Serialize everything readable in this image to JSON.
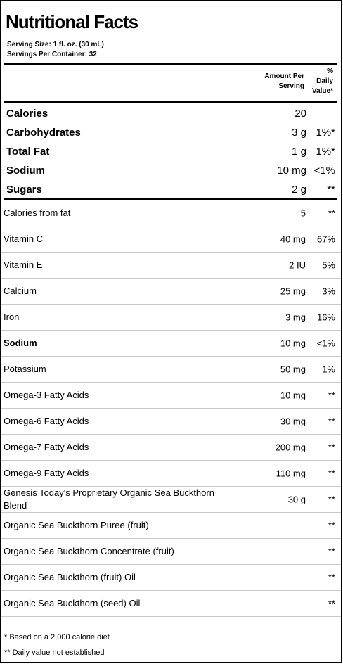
{
  "title": "Nutritional Facts",
  "serving_size": "Serving Size:  1 fl. oz. (30 mL)",
  "servings_per_container": "Servings Per Container:  32",
  "header": {
    "amount_line1": "Amount Per",
    "amount_line2": "Serving",
    "dv_line1": "%",
    "dv_line2": "Daily",
    "dv_line3": "Value*"
  },
  "top_rows": [
    {
      "name": "Calories",
      "amount": "20",
      "dv": ""
    },
    {
      "name": "Carbohydrates",
      "amount": "3 g",
      "dv": "1%*"
    },
    {
      "name": "Total Fat",
      "amount": "1 g",
      "dv": "1%*"
    },
    {
      "name": "Sodium",
      "amount": "10 mg",
      "dv": "<1%"
    },
    {
      "name": "Sugars",
      "amount": "2 g",
      "dv": "**"
    }
  ],
  "rows": [
    {
      "name": "Calories from fat",
      "amount": "5",
      "dv": "**"
    },
    {
      "name": "Vitamin C",
      "amount": "40 mg",
      "dv": "67%"
    },
    {
      "name": "Vitamin E",
      "amount": "2 IU",
      "dv": "5%"
    },
    {
      "name": "Calcium",
      "amount": "25 mg",
      "dv": "3%"
    },
    {
      "name": "Iron",
      "amount": "3 mg",
      "dv": "16%"
    },
    {
      "name": "Sodium",
      "amount": "10 mg",
      "dv": "<1%"
    },
    {
      "name": "Potassium",
      "amount": "50 mg",
      "dv": "1%"
    },
    {
      "name": "Omega-3 Fatty Acids",
      "amount": "10 mg",
      "dv": "**"
    },
    {
      "name": "Omega-6 Fatty Acids",
      "amount": "30 mg",
      "dv": "**"
    },
    {
      "name": "Omega-7 Fatty Acids",
      "amount": "200 mg",
      "dv": "**"
    },
    {
      "name": "Omega-9 Fatty Acids",
      "amount": "110 mg",
      "dv": "**"
    },
    {
      "name": "Genesis Today's Proprietary Organic Sea Buckthorn Blend",
      "amount": "30 g",
      "dv": "**"
    },
    {
      "name": "Organic Sea Buckthorn Puree (fruit)",
      "amount": "",
      "dv": "**"
    },
    {
      "name": "Organic Sea Buckthorn Concentrate (fruit)",
      "amount": "",
      "dv": "**"
    },
    {
      "name": "Organic Sea Buckthorn (fruit) Oil",
      "amount": "",
      "dv": "**"
    },
    {
      "name": "Organic Sea Buckthorn (seed) Oil",
      "amount": "",
      "dv": "**"
    }
  ],
  "footnotes": [
    "* Based on a 2,000 calorie diet",
    "** Daily value not established"
  ]
}
